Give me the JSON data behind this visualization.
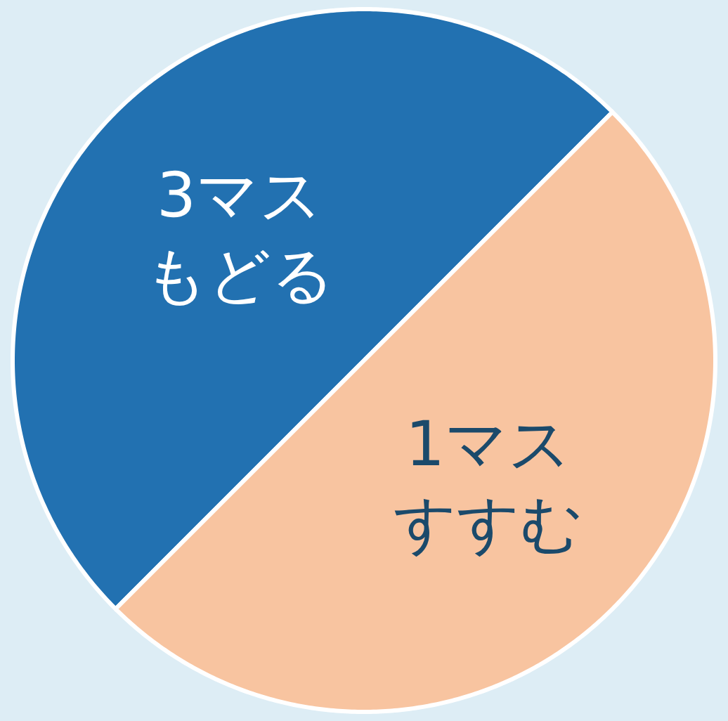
{
  "chart_data": {
    "type": "pie",
    "categories": [
      "3マスもどる",
      "1マスすすむ"
    ],
    "values": [
      50,
      50
    ],
    "colors": [
      "#2271b1",
      "#f8c4a0"
    ],
    "legend": false
  }
}
